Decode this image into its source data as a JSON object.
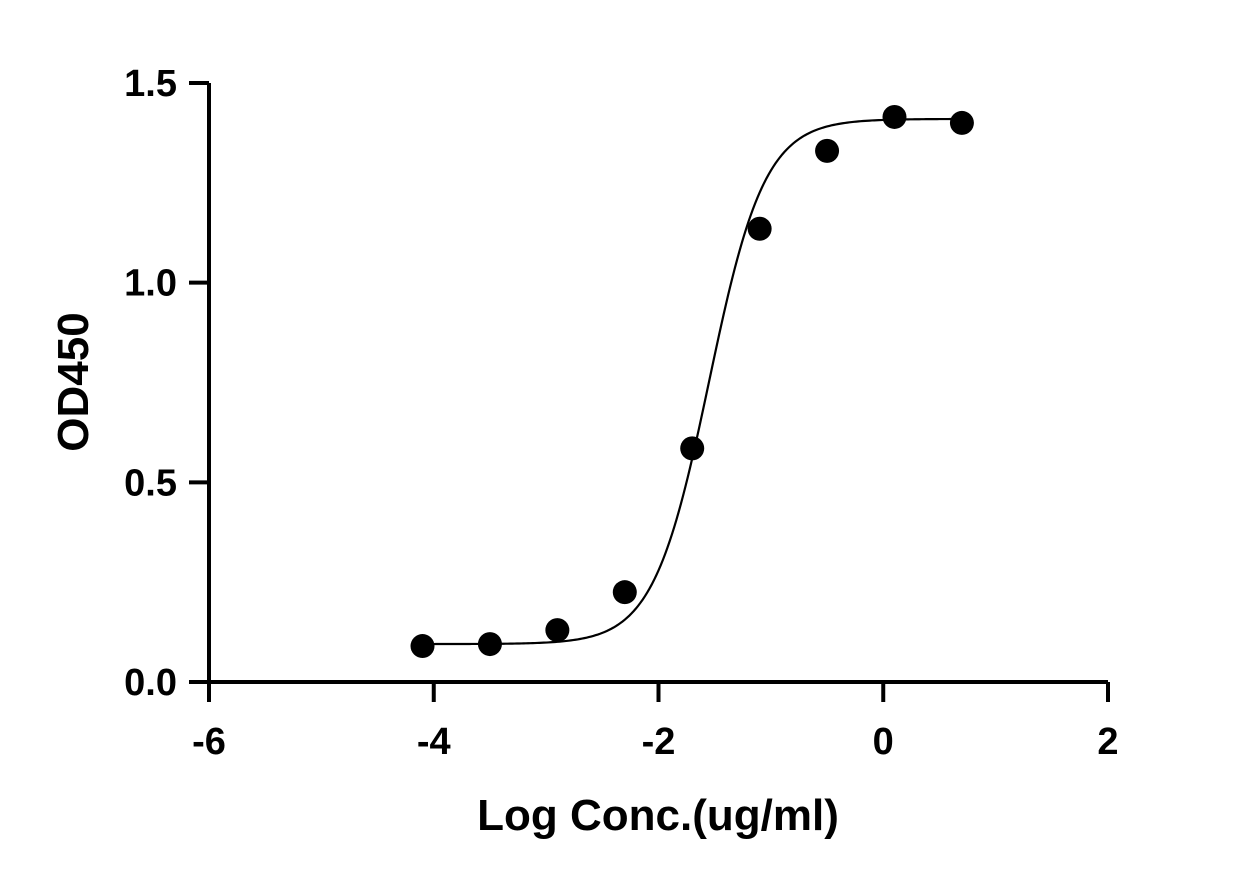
{
  "chart_data": {
    "type": "scatter",
    "title": "",
    "xlabel": "Log Conc.(ug/ml)",
    "ylabel": "OD450",
    "xlim": [
      -6,
      2
    ],
    "ylim": [
      0,
      1.5
    ],
    "xticks": [
      -6,
      -4,
      -2,
      0,
      2
    ],
    "yticks": [
      0.0,
      0.5,
      1.0,
      1.5
    ],
    "xtick_labels": [
      "-6",
      "-4",
      "-2",
      "0",
      "2"
    ],
    "ytick_labels": [
      "0.0",
      "0.5",
      "1.0",
      "1.5"
    ],
    "grid": false,
    "legend": "none",
    "series": [
      {
        "x": [
          -4.1,
          -3.5,
          -2.9,
          -2.3,
          -1.7,
          -1.1,
          -0.5,
          0.1,
          0.7
        ],
        "y": [
          0.09,
          0.095,
          0.13,
          0.225,
          0.585,
          1.135,
          1.33,
          1.415,
          1.4
        ],
        "color": "#000000"
      }
    ],
    "fit_curve": {
      "model": "4PL",
      "bottom": 0.095,
      "top": 1.41,
      "log_ec50": -1.55,
      "hill_slope": 1.75,
      "x_range": [
        -4.1,
        0.7
      ]
    }
  }
}
